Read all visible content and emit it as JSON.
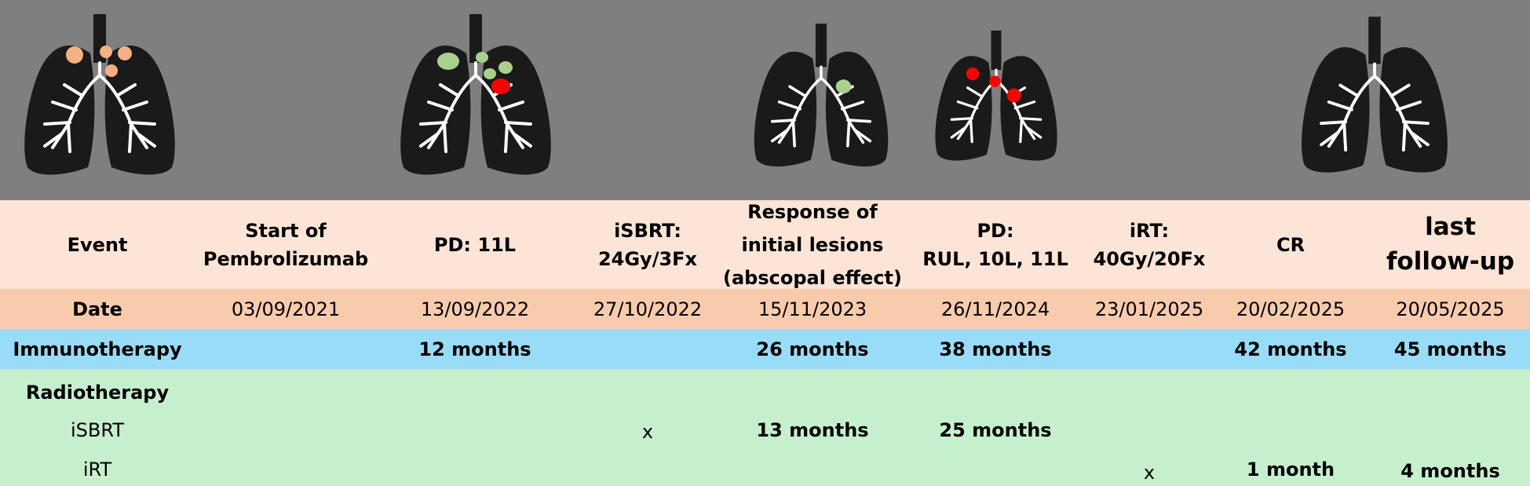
{
  "header_label": "Event",
  "date_label": "Date",
  "immuno_label": "Immunotherapy",
  "radio_label": "Radiotherapy",
  "isbrt_label": "iSBRT",
  "irt_label": "iRT",
  "events": [
    {
      "line1": "Start of",
      "line2": "Pembrolizumab",
      "date": "03/09/2021",
      "immuno": "",
      "isbrt": "",
      "irt": ""
    },
    {
      "line1": "PD: 11L",
      "line2": "",
      "date": "13/09/2022",
      "immuno": "12 months",
      "isbrt": "",
      "irt": ""
    },
    {
      "line1": "iSBRT:",
      "line2": "24Gy/3Fx",
      "date": "27/10/2022",
      "immuno": "",
      "isbrt": "x",
      "irt": ""
    },
    {
      "line1": "Response of",
      "line2": "initial lesions",
      "line3": "(abscopal effect)",
      "date": "15/11/2023",
      "immuno": "26 months",
      "isbrt": "13 months",
      "irt": ""
    },
    {
      "line1": "PD:",
      "line2": "RUL, 10L, 11L",
      "date": "26/11/2024",
      "immuno": "38 months",
      "isbrt": "25 months",
      "irt": ""
    },
    {
      "line1": "iRT:",
      "line2": "40Gy/20Fx",
      "date": "23/01/2025",
      "immuno": "",
      "isbrt": "",
      "irt": "x"
    },
    {
      "line1": "CR",
      "line2": "",
      "date": "20/02/2025",
      "immuno": "42 months",
      "isbrt": "",
      "irt": "1 month"
    },
    {
      "line1": "last",
      "line2": "follow-up",
      "date": "20/05/2025",
      "immuno": "45 months",
      "isbrt": "",
      "irt": "4 months"
    }
  ],
  "colors": {
    "lesion_baseline": "#f4b183",
    "lesion_responding": "#a9d18e",
    "lesion_progressing": "#ff0000",
    "lung": "#1a1a1a"
  }
}
